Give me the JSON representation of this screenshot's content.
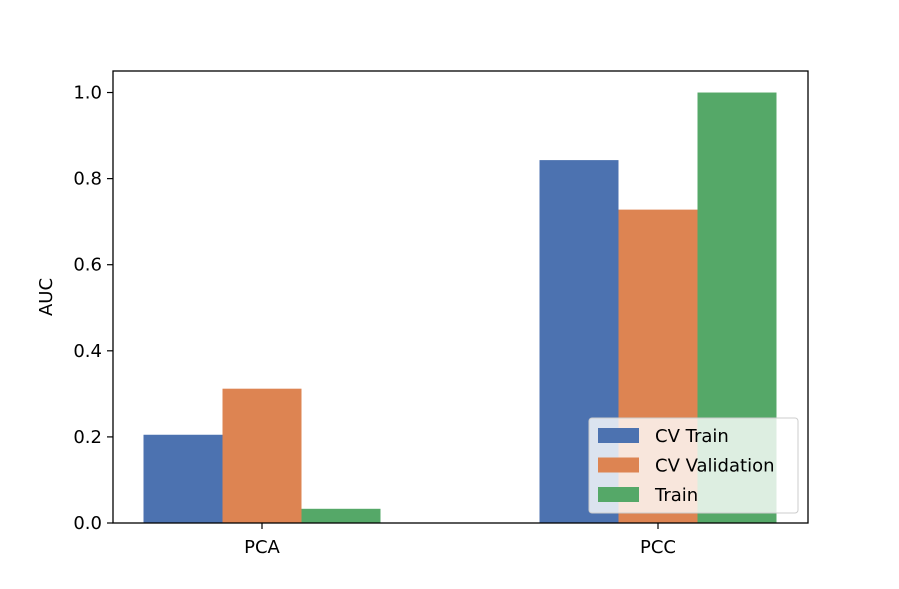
{
  "chart_data": {
    "type": "bar",
    "title": "",
    "xlabel": "",
    "ylabel": "AUC",
    "categories": [
      "PCA",
      "PCC"
    ],
    "series": [
      {
        "name": "CV Train",
        "color": "#4c72b0",
        "values": [
          0.205,
          0.843
        ]
      },
      {
        "name": "CV Validation",
        "color": "#dd8452",
        "values": [
          0.312,
          0.728
        ]
      },
      {
        "name": "Train",
        "color": "#55a868",
        "values": [
          0.033,
          1.0
        ]
      }
    ],
    "ylim": [
      0.0,
      1.05
    ],
    "yticks": [
      0.0,
      0.2,
      0.4,
      0.6,
      0.8,
      1.0
    ],
    "ytick_labels": [
      "0.0",
      "0.2",
      "0.4",
      "0.6",
      "0.8",
      "1.0"
    ],
    "grid": false,
    "legend_position": "lower-right"
  }
}
